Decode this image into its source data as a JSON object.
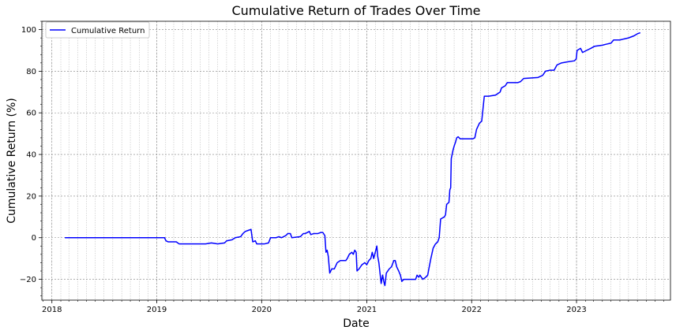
{
  "chart_data": {
    "type": "line",
    "title": "Cumulative Return of Trades Over Time",
    "xlabel": "Date",
    "ylabel": "Cumulative Return (%)",
    "xlim": [
      "2017-11-27",
      "2023-11-24"
    ],
    "ylim": [
      -30,
      104
    ],
    "x_ticks": [
      "2018",
      "2019",
      "2020",
      "2021",
      "2022",
      "2023"
    ],
    "y_ticks": [
      -20,
      0,
      20,
      40,
      60,
      80,
      100
    ],
    "grid": true,
    "legend": {
      "position": "top-left",
      "entries": [
        "Cumulative Return"
      ]
    },
    "series": [
      {
        "name": "Cumulative Return",
        "color": "#0000ff",
        "points": [
          [
            "2018-02-15",
            0
          ],
          [
            "2018-06-01",
            0
          ],
          [
            "2018-10-01",
            0
          ],
          [
            "2019-01-28",
            0
          ],
          [
            "2019-02-02",
            -1.5
          ],
          [
            "2019-02-10",
            -2
          ],
          [
            "2019-02-28",
            -2
          ],
          [
            "2019-03-10",
            -2
          ],
          [
            "2019-03-20",
            -3
          ],
          [
            "2019-04-15",
            -3
          ],
          [
            "2019-05-20",
            -3
          ],
          [
            "2019-06-20",
            -3
          ],
          [
            "2019-07-10",
            -2.5
          ],
          [
            "2019-08-01",
            -3
          ],
          [
            "2019-08-25",
            -2.5
          ],
          [
            "2019-09-01",
            -1.5
          ],
          [
            "2019-09-20",
            -1
          ],
          [
            "2019-10-01",
            0
          ],
          [
            "2019-10-20",
            0.5
          ],
          [
            "2019-10-28",
            2
          ],
          [
            "2019-11-05",
            3
          ],
          [
            "2019-11-15",
            3.5
          ],
          [
            "2019-11-25",
            4
          ],
          [
            "2019-12-01",
            -2
          ],
          [
            "2019-12-10",
            -1.5
          ],
          [
            "2019-12-15",
            -3
          ],
          [
            "2020-01-10",
            -3
          ],
          [
            "2020-01-25",
            -2.5
          ],
          [
            "2020-02-01",
            0
          ],
          [
            "2020-02-20",
            0
          ],
          [
            "2020-03-01",
            0.5
          ],
          [
            "2020-03-10",
            0
          ],
          [
            "2020-03-25",
            1
          ],
          [
            "2020-04-01",
            2
          ],
          [
            "2020-04-10",
            2
          ],
          [
            "2020-04-15",
            0
          ],
          [
            "2020-05-15",
            0.5
          ],
          [
            "2020-05-25",
            2
          ],
          [
            "2020-06-01",
            2
          ],
          [
            "2020-06-15",
            3
          ],
          [
            "2020-06-20",
            1.5
          ],
          [
            "2020-07-01",
            2
          ],
          [
            "2020-07-15",
            2
          ],
          [
            "2020-07-25",
            2.5
          ],
          [
            "2020-08-01",
            2.5
          ],
          [
            "2020-08-08",
            1
          ],
          [
            "2020-08-12",
            -7
          ],
          [
            "2020-08-16",
            -6
          ],
          [
            "2020-08-20",
            -9
          ],
          [
            "2020-08-25",
            -17
          ],
          [
            "2020-09-01",
            -15
          ],
          [
            "2020-09-10",
            -15
          ],
          [
            "2020-09-20",
            -12
          ],
          [
            "2020-10-01",
            -11
          ],
          [
            "2020-10-20",
            -11
          ],
          [
            "2020-10-25",
            -10
          ],
          [
            "2020-11-01",
            -8
          ],
          [
            "2020-11-10",
            -7
          ],
          [
            "2020-11-15",
            -8
          ],
          [
            "2020-11-20",
            -6
          ],
          [
            "2020-11-25",
            -7
          ],
          [
            "2020-11-28",
            -16
          ],
          [
            "2020-12-05",
            -15
          ],
          [
            "2020-12-15",
            -13
          ],
          [
            "2020-12-25",
            -12
          ],
          [
            "2021-01-01",
            -13
          ],
          [
            "2021-01-08",
            -11
          ],
          [
            "2021-01-15",
            -10
          ],
          [
            "2021-01-20",
            -7
          ],
          [
            "2021-01-25",
            -10
          ],
          [
            "2021-02-05",
            -4
          ],
          [
            "2021-02-08",
            -9
          ],
          [
            "2021-02-12",
            -12
          ],
          [
            "2021-02-16",
            -17
          ],
          [
            "2021-02-20",
            -22
          ],
          [
            "2021-02-25",
            -18
          ],
          [
            "2021-03-01",
            -21
          ],
          [
            "2021-03-05",
            -23
          ],
          [
            "2021-03-10",
            -17
          ],
          [
            "2021-03-20",
            -15
          ],
          [
            "2021-03-28",
            -14
          ],
          [
            "2021-04-05",
            -11
          ],
          [
            "2021-04-10",
            -11
          ],
          [
            "2021-04-15",
            -14
          ],
          [
            "2021-04-22",
            -16
          ],
          [
            "2021-04-28",
            -18
          ],
          [
            "2021-05-03",
            -21
          ],
          [
            "2021-05-10",
            -20
          ],
          [
            "2021-06-01",
            -20
          ],
          [
            "2021-06-20",
            -20
          ],
          [
            "2021-06-25",
            -18
          ],
          [
            "2021-07-01",
            -19
          ],
          [
            "2021-07-05",
            -18
          ],
          [
            "2021-07-10",
            -19
          ],
          [
            "2021-07-15",
            -20
          ],
          [
            "2021-07-25",
            -19
          ],
          [
            "2021-08-01",
            -18
          ],
          [
            "2021-08-05",
            -15
          ],
          [
            "2021-08-12",
            -10
          ],
          [
            "2021-08-20",
            -5
          ],
          [
            "2021-08-28",
            -3
          ],
          [
            "2021-09-05",
            -2
          ],
          [
            "2021-09-10",
            0
          ],
          [
            "2021-09-15",
            9
          ],
          [
            "2021-09-28",
            10
          ],
          [
            "2021-10-02",
            11
          ],
          [
            "2021-10-06",
            16
          ],
          [
            "2021-10-14",
            17
          ],
          [
            "2021-10-17",
            23
          ],
          [
            "2021-10-20",
            24
          ],
          [
            "2021-10-22",
            38
          ],
          [
            "2021-10-28",
            42
          ],
          [
            "2021-11-01",
            44
          ],
          [
            "2021-11-06",
            46
          ],
          [
            "2021-11-10",
            48
          ],
          [
            "2021-11-15",
            48.5
          ],
          [
            "2021-11-22",
            47.5
          ],
          [
            "2021-12-15",
            47.5
          ],
          [
            "2022-01-05",
            47.5
          ],
          [
            "2022-01-12",
            48
          ],
          [
            "2022-01-18",
            52
          ],
          [
            "2022-01-28",
            55
          ],
          [
            "2022-02-05",
            56
          ],
          [
            "2022-02-14",
            68
          ],
          [
            "2022-03-01",
            68
          ],
          [
            "2022-03-25",
            68.5
          ],
          [
            "2022-04-10",
            70
          ],
          [
            "2022-04-15",
            72
          ],
          [
            "2022-04-28",
            73
          ],
          [
            "2022-05-05",
            74.5
          ],
          [
            "2022-06-10",
            74.5
          ],
          [
            "2022-06-20",
            75
          ],
          [
            "2022-07-01",
            76.5
          ],
          [
            "2022-08-20",
            77
          ],
          [
            "2022-09-05",
            78
          ],
          [
            "2022-09-15",
            80
          ],
          [
            "2022-10-01",
            80.5
          ],
          [
            "2022-10-15",
            80.5
          ],
          [
            "2022-10-25",
            83
          ],
          [
            "2022-11-10",
            84
          ],
          [
            "2022-12-01",
            84.5
          ],
          [
            "2022-12-25",
            85
          ],
          [
            "2022-12-31",
            86
          ],
          [
            "2023-01-03",
            90
          ],
          [
            "2023-01-15",
            91
          ],
          [
            "2023-01-22",
            89
          ],
          [
            "2023-02-05",
            90
          ],
          [
            "2023-02-20",
            91
          ],
          [
            "2023-03-05",
            92
          ],
          [
            "2023-04-01",
            92.5
          ],
          [
            "2023-04-15",
            93
          ],
          [
            "2023-05-01",
            93.5
          ],
          [
            "2023-05-10",
            95
          ],
          [
            "2023-06-01",
            95
          ],
          [
            "2023-06-15",
            95.5
          ],
          [
            "2023-07-01",
            96
          ],
          [
            "2023-07-20",
            97
          ],
          [
            "2023-08-01",
            98
          ],
          [
            "2023-08-11",
            98.5
          ]
        ]
      }
    ]
  }
}
